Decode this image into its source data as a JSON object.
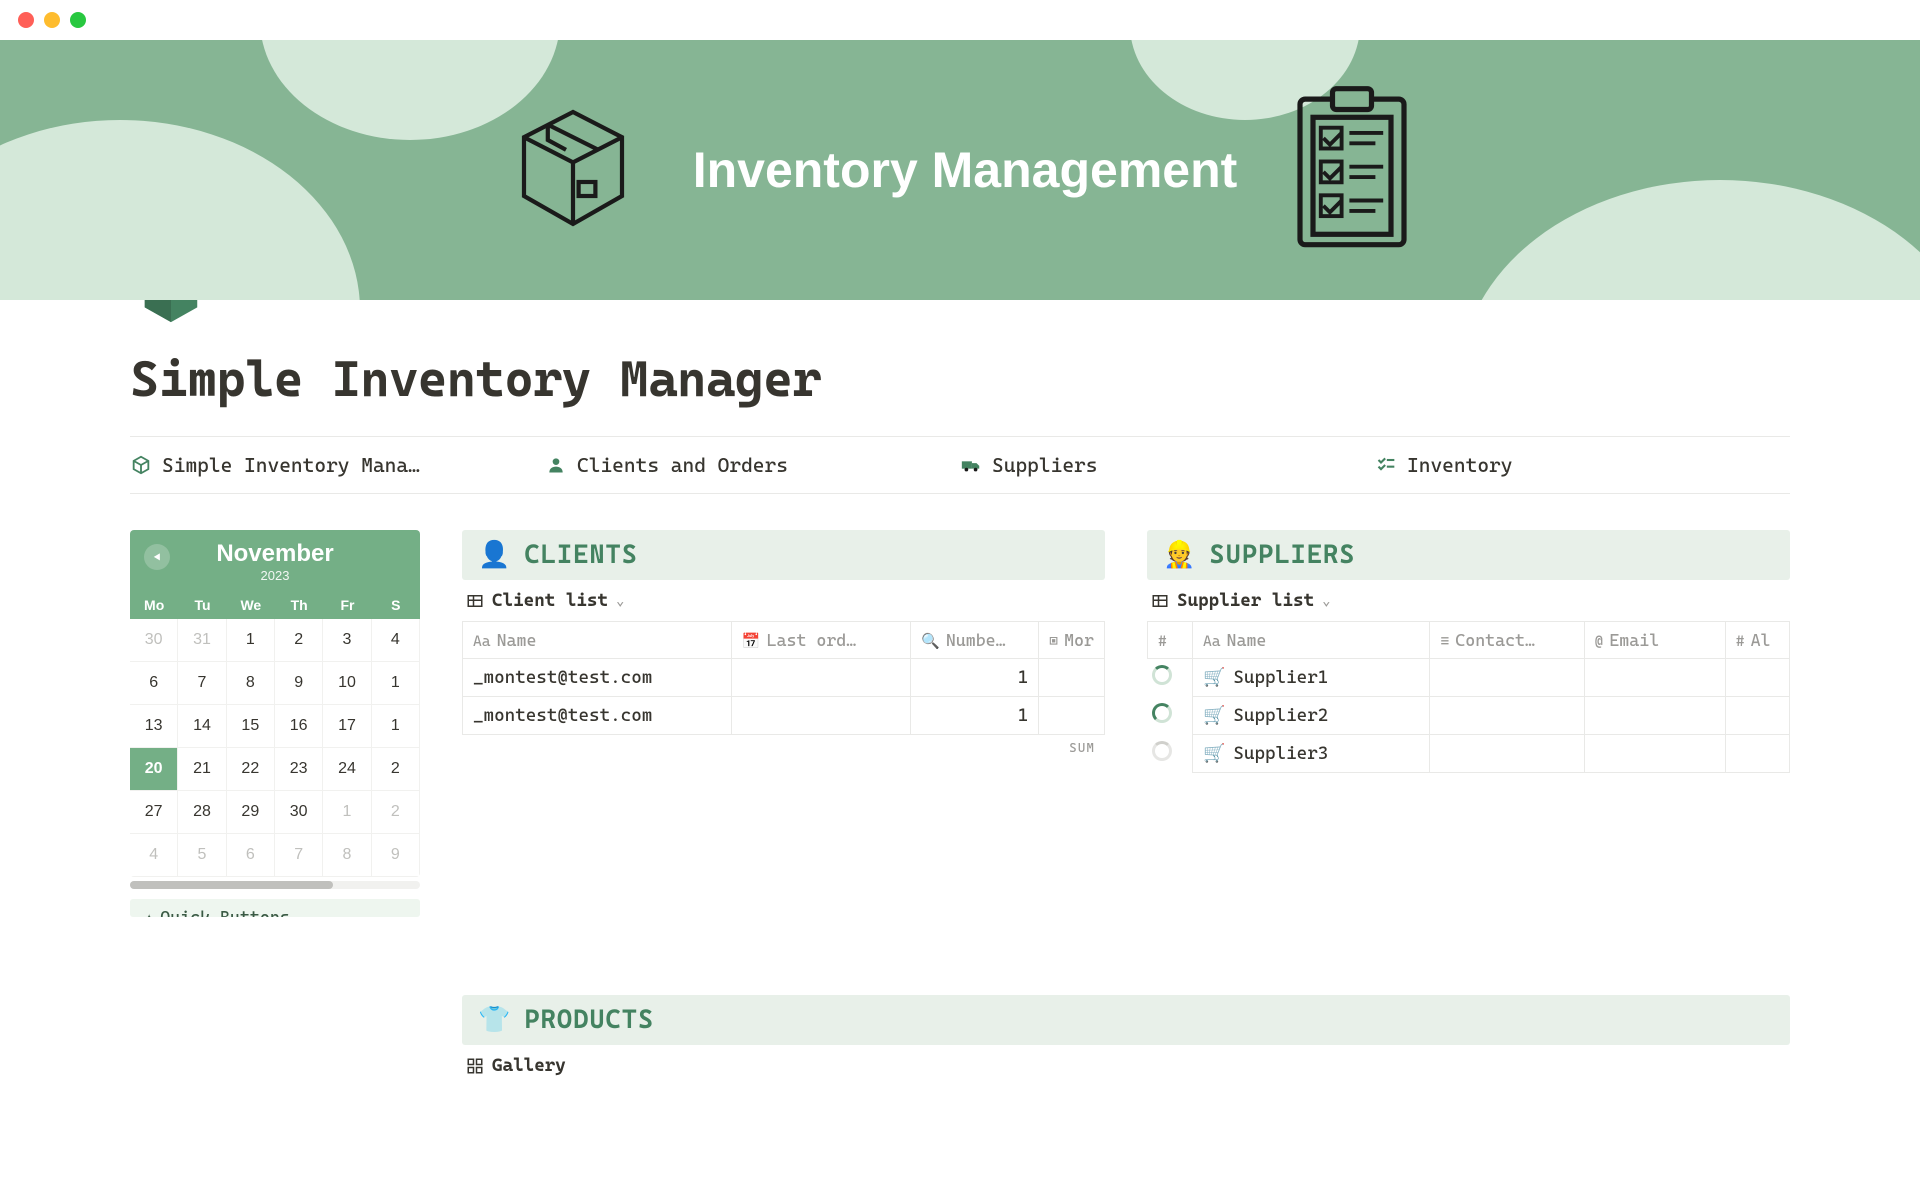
{
  "titlebar": {
    "traffic_colors": [
      "#ff5f57",
      "#febc2e",
      "#28c840"
    ]
  },
  "hero": {
    "title": "Inventory Management",
    "bg_color": "#86b594",
    "blob_color": "#d4e8d9"
  },
  "page": {
    "title": "Simple Inventory Manager",
    "icon_color": "#448361"
  },
  "nav": {
    "items": [
      {
        "icon": "box",
        "label": "Simple Inventory Mana…"
      },
      {
        "icon": "person",
        "label": "Clients and Orders"
      },
      {
        "icon": "truck",
        "label": "Suppliers"
      },
      {
        "icon": "checklist",
        "label": "Inventory"
      }
    ]
  },
  "calendar": {
    "month": "November",
    "year": "2023",
    "dow": [
      "Mo",
      "Tu",
      "We",
      "Th",
      "Fr",
      "S"
    ],
    "weeks": [
      [
        {
          "d": "30",
          "dim": true
        },
        {
          "d": "31",
          "dim": true
        },
        {
          "d": "1"
        },
        {
          "d": "2"
        },
        {
          "d": "3"
        },
        {
          "d": "4"
        }
      ],
      [
        {
          "d": "6"
        },
        {
          "d": "7"
        },
        {
          "d": "8"
        },
        {
          "d": "9"
        },
        {
          "d": "10"
        },
        {
          "d": "1"
        }
      ],
      [
        {
          "d": "13"
        },
        {
          "d": "14"
        },
        {
          "d": "15"
        },
        {
          "d": "16"
        },
        {
          "d": "17"
        },
        {
          "d": "1"
        }
      ],
      [
        {
          "d": "20",
          "today": true
        },
        {
          "d": "21"
        },
        {
          "d": "22"
        },
        {
          "d": "23"
        },
        {
          "d": "24"
        },
        {
          "d": "2"
        }
      ],
      [
        {
          "d": "27"
        },
        {
          "d": "28"
        },
        {
          "d": "29"
        },
        {
          "d": "30"
        },
        {
          "d": "1",
          "dim": true
        },
        {
          "d": "2",
          "dim": true
        }
      ],
      [
        {
          "d": "4",
          "dim": true
        },
        {
          "d": "5",
          "dim": true
        },
        {
          "d": "6",
          "dim": true
        },
        {
          "d": "7",
          "dim": true
        },
        {
          "d": "8",
          "dim": true
        },
        {
          "d": "9",
          "dim": true
        }
      ]
    ],
    "quick_buttons_label": "Quick Buttons",
    "header_bg": "#74af86"
  },
  "clients": {
    "title": "CLIENTS",
    "emoji": "👤",
    "view_label": "Client list",
    "columns": [
      "Name",
      "Last ord…",
      "Numbe…",
      "Mor"
    ],
    "col_icons": [
      "Aa",
      "calendar",
      "search",
      "media"
    ],
    "rows": [
      {
        "name": "_montest@test.com",
        "last": "",
        "num": "1",
        "more": ""
      },
      {
        "name": "_montest@test.com",
        "last": "",
        "num": "1",
        "more": ""
      }
    ],
    "sum_label": "SUM"
  },
  "suppliers": {
    "title": "SUPPLIERS",
    "emoji": "👷",
    "view_label": "Supplier list",
    "columns": [
      "Name",
      "Contact…",
      "Email",
      "Al"
    ],
    "col_icon_left": "#",
    "col_icons": [
      "Aa",
      "lines",
      "at",
      "hash"
    ],
    "rows": [
      {
        "name": "Supplier1"
      },
      {
        "name": "Supplier2"
      },
      {
        "name": "Supplier3"
      }
    ]
  },
  "products": {
    "title": "PRODUCTS",
    "emoji": "👕",
    "view_label": "Gallery"
  },
  "colors": {
    "accent": "#448361",
    "panel_bg": "#e8f0e9",
    "border": "#e9e9e7",
    "muted": "#9b9a97"
  }
}
